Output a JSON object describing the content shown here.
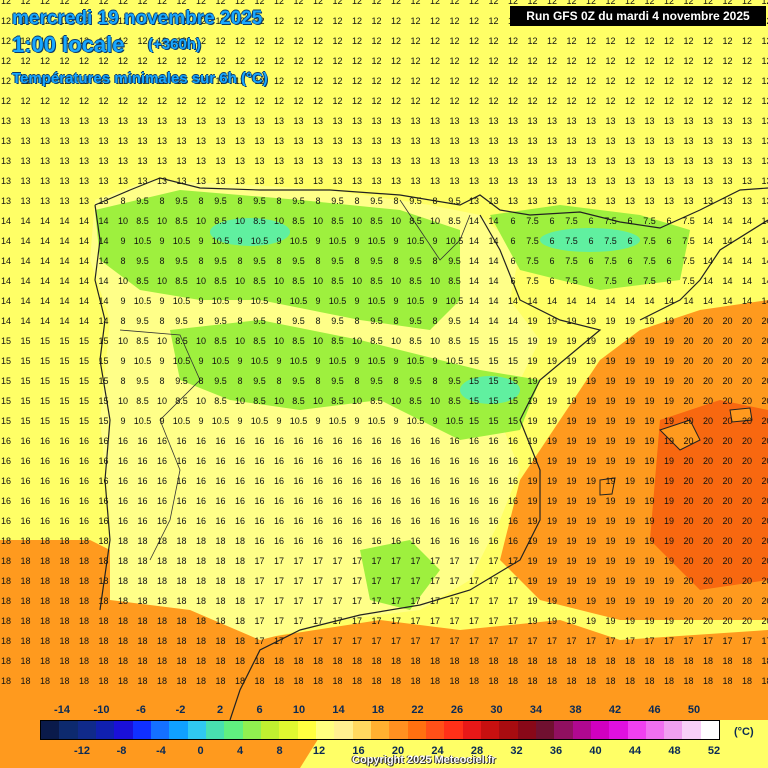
{
  "header": {
    "date": "mercredi 19 novembre 2025",
    "time": "1:00 locale",
    "offset": "(+360h)",
    "variable": "Températures minimales sur 6h (°C)"
  },
  "run_label": "Run GFS 0Z du mardi 4 novembre 2025",
  "legend": {
    "top_labels": [
      "-14",
      "-10",
      "-6",
      "-2",
      "2",
      "6",
      "10",
      "14",
      "18",
      "22",
      "26",
      "30",
      "34",
      "38",
      "42",
      "46",
      "50"
    ],
    "bottom_labels": [
      "-12",
      "-8",
      "-4",
      "0",
      "4",
      "8",
      "12",
      "16",
      "20",
      "24",
      "28",
      "32",
      "36",
      "40",
      "44",
      "48",
      "52"
    ],
    "unit": "(°C)",
    "colors": [
      "#0a1a4a",
      "#0d2a6e",
      "#102a8a",
      "#1020b0",
      "#1a10d8",
      "#1030ff",
      "#1470ff",
      "#10a0ff",
      "#30c8f0",
      "#48e0b0",
      "#60f080",
      "#90f050",
      "#c0f030",
      "#e0f830",
      "#ffff40",
      "#ffff80",
      "#fff090",
      "#ffd860",
      "#ffb030",
      "#ff9020",
      "#ff7010",
      "#ff5018",
      "#ff3018",
      "#e81818",
      "#c81010",
      "#a80c10",
      "#880818",
      "#701030",
      "#901060",
      "#b00890",
      "#d000c0",
      "#e010e0",
      "#f040f0",
      "#f070f0",
      "#f0a0f0",
      "#f8d0f8",
      "#ffffff"
    ]
  },
  "copyright": "Copyright 2025 Meteociel.fr",
  "palette": {
    "sea": "#ffff66",
    "orange": "#ff9a1e",
    "deep_orange": "#f86810",
    "green": "#9ef03e",
    "cyan": "#60f0a0",
    "coast": "#222222"
  }
}
